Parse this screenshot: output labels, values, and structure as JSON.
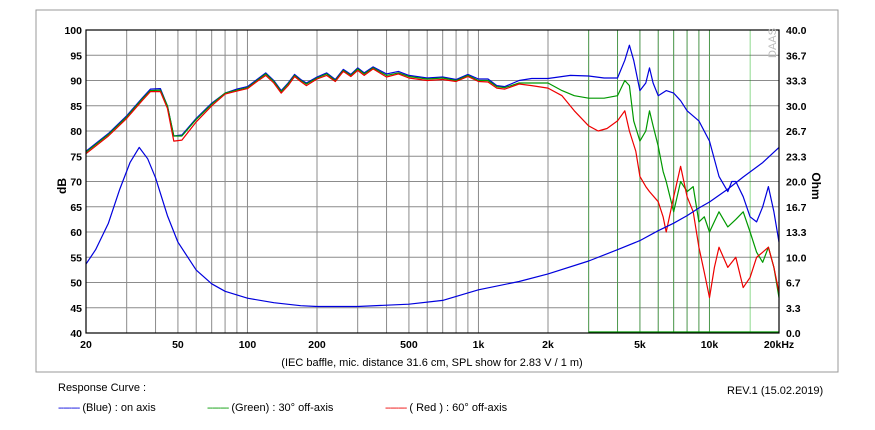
{
  "chart_data": {
    "type": "line",
    "xscale": "log",
    "xlim": [
      20,
      20000
    ],
    "ylim_left": [
      40,
      100
    ],
    "ylim_right": [
      0,
      40
    ],
    "ylabel_left": "dB",
    "ylabel_right": "Ohm",
    "xlabel": "(IEC baffle, mic. distance 31.6 cm, SPL show for 2.83 V / 1 m)",
    "xticks": [
      {
        "v": 20,
        "label": "20"
      },
      {
        "v": 50,
        "label": "50"
      },
      {
        "v": 100,
        "label": "100"
      },
      {
        "v": 200,
        "label": "200"
      },
      {
        "v": 500,
        "label": "500"
      },
      {
        "v": 1000,
        "label": "1k"
      },
      {
        "v": 2000,
        "label": "2k"
      },
      {
        "v": 5000,
        "label": "5k"
      },
      {
        "v": 10000,
        "label": "10k"
      },
      {
        "v": 20000,
        "label": "20kHz"
      }
    ],
    "yticks_left": [
      "100",
      "95",
      "90",
      "85",
      "80",
      "75",
      "70",
      "65",
      "60",
      "55",
      "50",
      "45",
      "40"
    ],
    "yticks_right": [
      "40.0",
      "36.7",
      "33.3",
      "30.0",
      "26.7",
      "23.3",
      "20.0",
      "16.7",
      "13.3",
      "10.0",
      "6.7",
      "3.3",
      "0.0"
    ],
    "grid": true,
    "watermark": "DAAS",
    "series": [
      {
        "name": "(Blue) : on axis",
        "color": "#0000dd",
        "axis": "left",
        "points": [
          [
            20,
            76
          ],
          [
            25,
            79.5
          ],
          [
            30,
            83
          ],
          [
            35,
            86.5
          ],
          [
            38,
            88.3
          ],
          [
            42,
            88.4
          ],
          [
            45,
            85
          ],
          [
            48,
            79
          ],
          [
            52,
            79.2
          ],
          [
            60,
            82.5
          ],
          [
            70,
            85.5
          ],
          [
            80,
            87.5
          ],
          [
            90,
            88.3
          ],
          [
            100,
            88.8
          ],
          [
            110,
            90.2
          ],
          [
            120,
            91.5
          ],
          [
            130,
            90
          ],
          [
            140,
            88
          ],
          [
            150,
            89.5
          ],
          [
            160,
            91.2
          ],
          [
            170,
            90.2
          ],
          [
            180,
            89.5
          ],
          [
            200,
            90.7
          ],
          [
            220,
            91.5
          ],
          [
            240,
            90.2
          ],
          [
            260,
            92.2
          ],
          [
            280,
            91.2
          ],
          [
            300,
            92.5
          ],
          [
            320,
            91.5
          ],
          [
            350,
            92.7
          ],
          [
            400,
            91.3
          ],
          [
            450,
            91.8
          ],
          [
            500,
            91
          ],
          [
            600,
            90.5
          ],
          [
            700,
            90.7
          ],
          [
            800,
            90.2
          ],
          [
            900,
            91.2
          ],
          [
            1000,
            90.3
          ],
          [
            1100,
            90.3
          ],
          [
            1200,
            89
          ],
          [
            1300,
            88.8
          ],
          [
            1500,
            90
          ],
          [
            1700,
            90.4
          ],
          [
            2000,
            90.4
          ],
          [
            2500,
            91
          ],
          [
            3000,
            90.9
          ],
          [
            3500,
            90.5
          ],
          [
            4000,
            90.5
          ],
          [
            4300,
            94
          ],
          [
            4500,
            97
          ],
          [
            4700,
            94
          ],
          [
            5000,
            88
          ],
          [
            5300,
            89.5
          ],
          [
            5500,
            92.5
          ],
          [
            5700,
            89.5
          ],
          [
            6000,
            87
          ],
          [
            6500,
            88
          ],
          [
            7000,
            87.5
          ],
          [
            7500,
            86
          ],
          [
            8000,
            84
          ],
          [
            9000,
            82
          ],
          [
            10000,
            78
          ],
          [
            11000,
            71
          ],
          [
            12000,
            68
          ],
          [
            12500,
            70
          ],
          [
            13000,
            70
          ],
          [
            14000,
            67
          ],
          [
            15000,
            63
          ],
          [
            16000,
            62
          ],
          [
            17000,
            65
          ],
          [
            18000,
            69
          ],
          [
            19000,
            64
          ],
          [
            20000,
            58
          ]
        ]
      },
      {
        "name": "(Green) : 30° off-axis",
        "color": "#009900",
        "axis": "left",
        "points": [
          [
            20,
            75.8
          ],
          [
            25,
            79.3
          ],
          [
            30,
            82.8
          ],
          [
            35,
            86.3
          ],
          [
            38,
            88
          ],
          [
            42,
            88.1
          ],
          [
            45,
            85
          ],
          [
            48,
            79
          ],
          [
            52,
            79
          ],
          [
            60,
            82.3
          ],
          [
            70,
            85.3
          ],
          [
            80,
            87.5
          ],
          [
            90,
            88.1
          ],
          [
            100,
            88.6
          ],
          [
            110,
            90
          ],
          [
            120,
            91.3
          ],
          [
            130,
            89.8
          ],
          [
            140,
            87.8
          ],
          [
            150,
            89.3
          ],
          [
            160,
            91
          ],
          [
            170,
            90
          ],
          [
            180,
            89.3
          ],
          [
            200,
            90.5
          ],
          [
            220,
            91.3
          ],
          [
            240,
            90
          ],
          [
            260,
            92
          ],
          [
            280,
            91
          ],
          [
            300,
            92.3
          ],
          [
            320,
            91.3
          ],
          [
            350,
            92.5
          ],
          [
            400,
            91
          ],
          [
            450,
            91.5
          ],
          [
            500,
            90.8
          ],
          [
            600,
            90.3
          ],
          [
            700,
            90.5
          ],
          [
            800,
            90
          ],
          [
            900,
            91
          ],
          [
            1000,
            90
          ],
          [
            1100,
            90
          ],
          [
            1200,
            88.8
          ],
          [
            1300,
            88.6
          ],
          [
            1500,
            89.5
          ],
          [
            1700,
            89.5
          ],
          [
            2000,
            89.5
          ],
          [
            2300,
            88
          ],
          [
            2600,
            87
          ],
          [
            3000,
            86.5
          ],
          [
            3500,
            86.5
          ],
          [
            4000,
            87
          ],
          [
            4300,
            90
          ],
          [
            4500,
            89
          ],
          [
            4700,
            82
          ],
          [
            5000,
            78
          ],
          [
            5300,
            80
          ],
          [
            5500,
            84
          ],
          [
            5700,
            81
          ],
          [
            6000,
            77
          ],
          [
            6300,
            72
          ],
          [
            6500,
            70
          ],
          [
            7000,
            64
          ],
          [
            7500,
            70
          ],
          [
            8000,
            68
          ],
          [
            8500,
            69
          ],
          [
            9000,
            62
          ],
          [
            9500,
            63
          ],
          [
            10000,
            60
          ],
          [
            11000,
            64
          ],
          [
            12000,
            61
          ],
          [
            13000,
            62.5
          ],
          [
            14000,
            64
          ],
          [
            15000,
            60
          ],
          [
            16000,
            56
          ],
          [
            17000,
            54
          ],
          [
            18000,
            57
          ],
          [
            19000,
            53
          ],
          [
            20000,
            47
          ]
        ]
      },
      {
        "name": "( Red ) : 60° off-axis",
        "color": "#ee0000",
        "axis": "left",
        "points": [
          [
            20,
            75.5
          ],
          [
            25,
            79
          ],
          [
            30,
            82.5
          ],
          [
            35,
            86
          ],
          [
            38,
            87.8
          ],
          [
            42,
            87.8
          ],
          [
            45,
            84.5
          ],
          [
            48,
            78
          ],
          [
            52,
            78.2
          ],
          [
            60,
            81.8
          ],
          [
            70,
            85
          ],
          [
            80,
            87.3
          ],
          [
            90,
            87.9
          ],
          [
            100,
            88.4
          ],
          [
            110,
            89.8
          ],
          [
            120,
            91
          ],
          [
            130,
            89.5
          ],
          [
            140,
            87.5
          ],
          [
            150,
            89
          ],
          [
            160,
            90.8
          ],
          [
            170,
            89.8
          ],
          [
            180,
            89
          ],
          [
            200,
            90.3
          ],
          [
            220,
            91
          ],
          [
            240,
            89.8
          ],
          [
            260,
            91.8
          ],
          [
            280,
            90.8
          ],
          [
            300,
            92
          ],
          [
            320,
            91
          ],
          [
            350,
            92.3
          ],
          [
            400,
            90.7
          ],
          [
            450,
            91.3
          ],
          [
            500,
            90.5
          ],
          [
            600,
            90
          ],
          [
            700,
            90.2
          ],
          [
            800,
            89.8
          ],
          [
            900,
            90.8
          ],
          [
            1000,
            89.8
          ],
          [
            1100,
            89.7
          ],
          [
            1200,
            88.5
          ],
          [
            1300,
            88.3
          ],
          [
            1500,
            89.3
          ],
          [
            1700,
            89
          ],
          [
            2000,
            88.5
          ],
          [
            2300,
            87
          ],
          [
            2600,
            84
          ],
          [
            3000,
            81
          ],
          [
            3300,
            80
          ],
          [
            3600,
            80.5
          ],
          [
            4000,
            82
          ],
          [
            4300,
            84
          ],
          [
            4500,
            80
          ],
          [
            4800,
            76
          ],
          [
            5000,
            71
          ],
          [
            5300,
            69
          ],
          [
            5500,
            68
          ],
          [
            6000,
            66
          ],
          [
            6300,
            63
          ],
          [
            6500,
            60
          ],
          [
            7000,
            67
          ],
          [
            7500,
            73
          ],
          [
            8000,
            67
          ],
          [
            8500,
            64
          ],
          [
            9000,
            57
          ],
          [
            9500,
            52
          ],
          [
            10000,
            47
          ],
          [
            10500,
            53
          ],
          [
            11000,
            57
          ],
          [
            12000,
            53
          ],
          [
            13000,
            55
          ],
          [
            14000,
            49
          ],
          [
            15000,
            51
          ],
          [
            16000,
            55
          ],
          [
            17000,
            56
          ],
          [
            18000,
            57
          ],
          [
            19000,
            53
          ],
          [
            20000,
            48
          ]
        ]
      },
      {
        "name": "impedance",
        "color": "#0000dd",
        "axis": "right",
        "points": [
          [
            20,
            9.1
          ],
          [
            22,
            11
          ],
          [
            25,
            14.5
          ],
          [
            28,
            19
          ],
          [
            31,
            22.5
          ],
          [
            34,
            24.5
          ],
          [
            37,
            23
          ],
          [
            40,
            20.5
          ],
          [
            45,
            15.5
          ],
          [
            50,
            12
          ],
          [
            60,
            8.3
          ],
          [
            70,
            6.5
          ],
          [
            80,
            5.5
          ],
          [
            100,
            4.6
          ],
          [
            130,
            4
          ],
          [
            170,
            3.6
          ],
          [
            200,
            3.5
          ],
          [
            300,
            3.5
          ],
          [
            500,
            3.8
          ],
          [
            700,
            4.3
          ],
          [
            900,
            5.3
          ],
          [
            1000,
            5.7
          ],
          [
            1500,
            6.8
          ],
          [
            2000,
            7.8
          ],
          [
            3000,
            9.5
          ],
          [
            4000,
            11
          ],
          [
            5000,
            12.2
          ],
          [
            6000,
            13.5
          ],
          [
            7000,
            14.5
          ],
          [
            8000,
            15.5
          ],
          [
            9000,
            16.5
          ],
          [
            10000,
            17.3
          ],
          [
            12000,
            19
          ],
          [
            14000,
            20.6
          ],
          [
            17000,
            22.5
          ],
          [
            20000,
            24.5
          ]
        ]
      }
    ]
  },
  "legend": {
    "heading": "Response Curve :",
    "items": [
      {
        "dash": "--------",
        "label": "(Blue)  : on axis",
        "color": "#0000dd"
      },
      {
        "dash": "--------",
        "label": "(Green) : 30° off-axis",
        "color": "#009900"
      },
      {
        "dash": "--------",
        "label": "( Red ) : 60° off-axis",
        "color": "#ee0000"
      }
    ]
  },
  "revision": "REV.1 (15.02.2019)"
}
